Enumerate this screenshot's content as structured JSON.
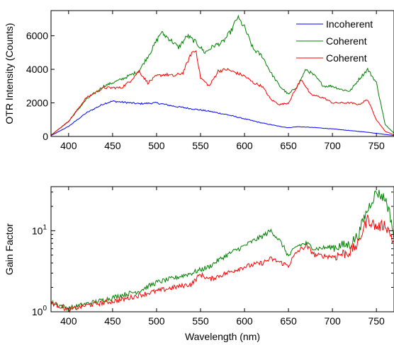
{
  "colors": {
    "incoherent": "#0000ff",
    "coherent_green": "#008000",
    "coherent_red": "#ff0000",
    "axis": "#000000"
  },
  "chart_data": [
    {
      "type": "line",
      "xlabel": "",
      "ylabel": "OTR Intensity (Counts)",
      "xlim": [
        380,
        770
      ],
      "ylim": [
        0,
        7500
      ],
      "xticks": [
        400,
        450,
        500,
        550,
        600,
        650,
        700,
        750
      ],
      "yticks": [
        0,
        2000,
        4000,
        6000
      ],
      "xtick_labels": [
        "400",
        "450",
        "500",
        "550",
        "600",
        "650",
        "700",
        "750"
      ],
      "ytick_labels": [
        "0",
        "2000",
        "4000",
        "6000"
      ],
      "legend": "top-right",
      "series": [
        {
          "name": "Incoherent",
          "color": "#0000ff",
          "x": [
            380,
            400,
            420,
            440,
            450,
            460,
            480,
            500,
            520,
            540,
            560,
            580,
            600,
            620,
            640,
            650,
            660,
            680,
            700,
            720,
            740,
            760,
            770
          ],
          "y": [
            50,
            600,
            1400,
            1950,
            2100,
            2050,
            1950,
            2000,
            1800,
            1650,
            1500,
            1300,
            1050,
            800,
            600,
            520,
            580,
            530,
            450,
            350,
            250,
            120,
            60
          ]
        },
        {
          "name": "Coherent",
          "color": "#008000",
          "x": [
            380,
            400,
            420,
            440,
            460,
            480,
            495,
            505,
            515,
            525,
            535,
            545,
            555,
            565,
            575,
            585,
            592,
            600,
            610,
            620,
            630,
            640,
            650,
            660,
            670,
            680,
            690,
            700,
            710,
            720,
            730,
            740,
            750,
            760,
            770
          ],
          "y": [
            80,
            900,
            2200,
            3000,
            3400,
            3900,
            5200,
            6200,
            5800,
            5300,
            6000,
            5600,
            5000,
            5400,
            5600,
            6300,
            7100,
            6500,
            5200,
            4800,
            3800,
            3000,
            2500,
            3000,
            4000,
            3600,
            3000,
            3000,
            2800,
            2700,
            3400,
            4000,
            3200,
            700,
            200
          ]
        },
        {
          "name": "Coherent",
          "color": "#ff0000",
          "x": [
            380,
            400,
            420,
            440,
            460,
            470,
            480,
            490,
            500,
            510,
            520,
            530,
            540,
            545,
            550,
            560,
            570,
            580,
            590,
            600,
            610,
            620,
            630,
            640,
            650,
            660,
            665,
            675,
            690,
            700,
            720,
            730,
            740,
            750,
            760,
            770
          ],
          "y": [
            70,
            900,
            2300,
            2900,
            2900,
            3300,
            3900,
            3200,
            3600,
            3700,
            3600,
            3800,
            5000,
            5100,
            3500,
            3000,
            3900,
            4000,
            3800,
            3600,
            3200,
            3000,
            2200,
            1900,
            2000,
            3000,
            3400,
            2500,
            2300,
            2000,
            2000,
            1900,
            2200,
            1000,
            300,
            100
          ]
        }
      ]
    },
    {
      "type": "line",
      "xlabel": "Wavelength  (nm)",
      "ylabel": "Gain Factor",
      "xlim": [
        380,
        770
      ],
      "ylim": [
        1,
        35
      ],
      "yscale": "log",
      "xticks": [
        400,
        450,
        500,
        550,
        600,
        650,
        700,
        750
      ],
      "xtick_labels": [
        "400",
        "450",
        "500",
        "550",
        "600",
        "650",
        "700",
        "750"
      ],
      "yticks": [
        1,
        10
      ],
      "ytick_labels": [
        {
          "base": "10",
          "exp": "0"
        },
        {
          "base": "10",
          "exp": "1"
        }
      ],
      "series": [
        {
          "color": "#008000",
          "x": [
            380,
            400,
            420,
            440,
            460,
            480,
            500,
            520,
            540,
            560,
            580,
            600,
            620,
            630,
            640,
            650,
            660,
            670,
            680,
            700,
            720,
            730,
            740,
            750,
            760,
            770
          ],
          "y": [
            1.3,
            1.1,
            1.25,
            1.4,
            1.6,
            1.8,
            2.3,
            2.6,
            3.0,
            3.6,
            5.0,
            6.5,
            8.5,
            10.0,
            7.5,
            4.8,
            6.5,
            7.0,
            6.0,
            6.3,
            6.8,
            9.0,
            18,
            30,
            25,
            8
          ]
        },
        {
          "color": "#ff0000",
          "x": [
            380,
            400,
            420,
            440,
            460,
            480,
            500,
            520,
            540,
            550,
            560,
            580,
            600,
            620,
            630,
            640,
            650,
            660,
            670,
            680,
            700,
            720,
            730,
            740,
            750,
            760,
            770
          ],
          "y": [
            1.3,
            1.05,
            1.2,
            1.3,
            1.4,
            1.6,
            1.8,
            2.0,
            2.2,
            2.9,
            2.5,
            3.0,
            3.6,
            4.0,
            4.5,
            4.1,
            3.7,
            5.5,
            6.5,
            5.0,
            4.8,
            5.5,
            7.0,
            14,
            11,
            12,
            7
          ]
        }
      ]
    }
  ]
}
